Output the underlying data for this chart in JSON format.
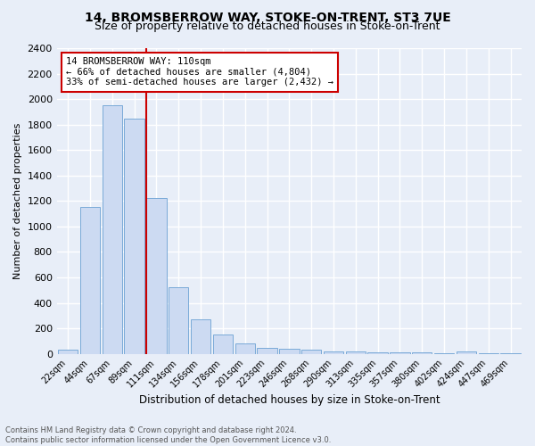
{
  "title": "14, BROMSBERROW WAY, STOKE-ON-TRENT, ST3 7UE",
  "subtitle": "Size of property relative to detached houses in Stoke-on-Trent",
  "xlabel": "Distribution of detached houses by size in Stoke-on-Trent",
  "ylabel": "Number of detached properties",
  "bar_labels": [
    "22sqm",
    "44sqm",
    "67sqm",
    "89sqm",
    "111sqm",
    "134sqm",
    "156sqm",
    "178sqm",
    "201sqm",
    "223sqm",
    "246sqm",
    "268sqm",
    "290sqm",
    "313sqm",
    "335sqm",
    "357sqm",
    "380sqm",
    "402sqm",
    "424sqm",
    "447sqm",
    "469sqm"
  ],
  "bar_values": [
    30,
    1150,
    1950,
    1850,
    1220,
    520,
    270,
    155,
    85,
    45,
    40,
    35,
    20,
    20,
    15,
    12,
    10,
    5,
    20,
    5,
    5
  ],
  "bar_color": "#ccdaf2",
  "bar_edge_color": "#7aaad8",
  "property_line_color": "#cc0000",
  "annotation_text": "14 BROMSBERROW WAY: 110sqm\n← 66% of detached houses are smaller (4,804)\n33% of semi-detached houses are larger (2,432) →",
  "annotation_box_color": "#ffffff",
  "annotation_box_edge": "#cc0000",
  "ylim": [
    0,
    2400
  ],
  "yticks": [
    0,
    200,
    400,
    600,
    800,
    1000,
    1200,
    1400,
    1600,
    1800,
    2000,
    2200,
    2400
  ],
  "footer_line1": "Contains HM Land Registry data © Crown copyright and database right 2024.",
  "footer_line2": "Contains public sector information licensed under the Open Government Licence v3.0.",
  "background_color": "#e8eef8",
  "fig_background_color": "#e8eef8",
  "grid_color": "#ffffff",
  "title_fontsize": 10,
  "subtitle_fontsize": 9,
  "ylabel_text": "Number of detached properties"
}
